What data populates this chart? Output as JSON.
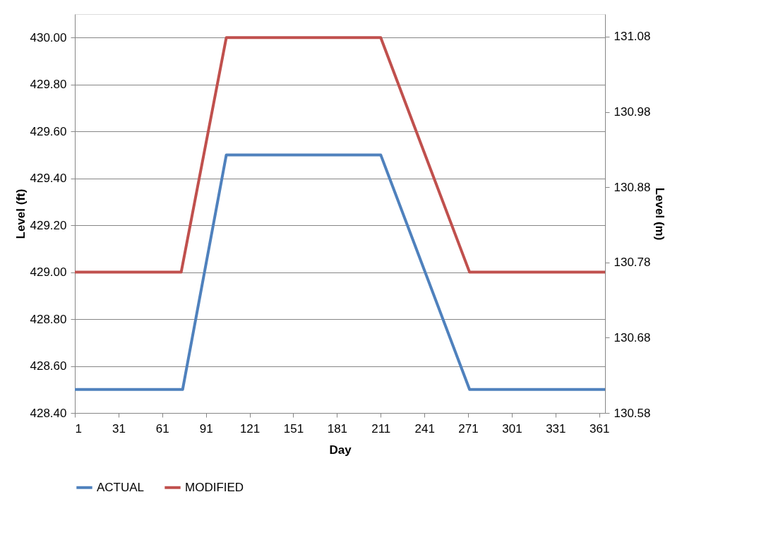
{
  "chart_data": {
    "type": "line",
    "xlabel": "Day",
    "ylabel": "Level (ft)",
    "y2label": "Level (m)",
    "xlim": [
      1,
      365
    ],
    "xticks": [
      1,
      31,
      61,
      91,
      121,
      151,
      181,
      211,
      241,
      271,
      301,
      331,
      361
    ],
    "ylim": [
      428.4,
      430.1
    ],
    "yticks": [
      {
        "value": 428.4,
        "label": "428.40"
      },
      {
        "value": 428.6,
        "label": "428.60"
      },
      {
        "value": 428.8,
        "label": "428.80"
      },
      {
        "value": 429.0,
        "label": "429.00"
      },
      {
        "value": 429.2,
        "label": "429.20"
      },
      {
        "value": 429.4,
        "label": "429.40"
      },
      {
        "value": 429.6,
        "label": "429.60"
      },
      {
        "value": 429.8,
        "label": "429.80"
      },
      {
        "value": 430.0,
        "label": "430.00"
      }
    ],
    "y2lim": [
      130.58,
      131.11
    ],
    "y2ticks": [
      {
        "value": 130.58,
        "label": "130.58"
      },
      {
        "value": 130.68,
        "label": "130.68"
      },
      {
        "value": 130.78,
        "label": "130.78"
      },
      {
        "value": 130.88,
        "label": "130.88"
      },
      {
        "value": 130.98,
        "label": "130.98"
      },
      {
        "value": 131.08,
        "label": "131.08"
      }
    ],
    "grid": "y",
    "legend": "bottom",
    "line_style": "solid",
    "series": [
      {
        "name": "ACTUAL",
        "color": "#4f81bd",
        "x": [
          1,
          75,
          105,
          211,
          272,
          365
        ],
        "values": [
          428.5,
          428.5,
          429.5,
          429.5,
          428.5,
          428.5
        ]
      },
      {
        "name": "MODIFIED",
        "color": "#c0504d",
        "x": [
          1,
          74,
          105,
          211,
          272,
          365
        ],
        "values": [
          429.0,
          429.0,
          430.0,
          430.0,
          429.0,
          429.0
        ]
      }
    ]
  }
}
